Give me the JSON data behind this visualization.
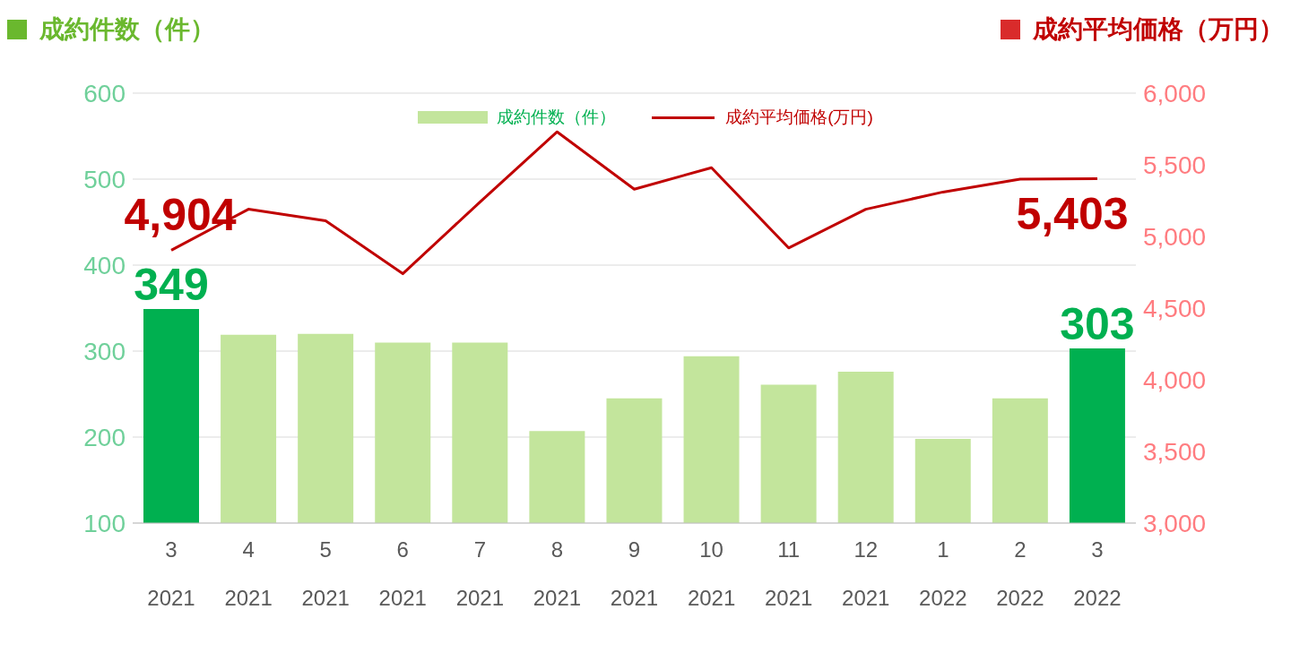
{
  "chart_data": {
    "type": "bar",
    "ylabel": "成約件数（件）",
    "y2label": "成約平均価格（万円）",
    "categories": [
      "3\n2021",
      "4\n2021",
      "5\n2021",
      "6\n2021",
      "7\n2021",
      "8\n2021",
      "9\n2021",
      "10\n2021",
      "11\n2021",
      "12\n2021",
      "1\n2022",
      "2\n2022",
      "3\n2022"
    ],
    "series": [
      {
        "name": "成約件数（件）",
        "color": "#c3e59c",
        "colors": [
          "#00b050",
          "#c3e59c",
          "#c3e59c",
          "#c3e59c",
          "#c3e59c",
          "#c3e59c",
          "#c3e59c",
          "#c3e59c",
          "#c3e59c",
          "#c3e59c",
          "#c3e59c",
          "#c3e59c",
          "#00b050"
        ],
        "values": [
          349,
          319,
          320,
          310,
          310,
          207,
          245,
          294,
          261,
          276,
          198,
          245,
          303
        ],
        "value_labels": [
          "349",
          null,
          null,
          null,
          null,
          null,
          null,
          null,
          null,
          null,
          null,
          null,
          "303"
        ]
      },
      {
        "name": "成約平均価格(万円)",
        "type": "line",
        "axis": "y2",
        "color": "#c00000",
        "values": [
          4904,
          5190,
          5110,
          4740,
          5240,
          5730,
          5330,
          5480,
          4920,
          5190,
          5310,
          5400,
          5403
        ],
        "value_labels": [
          "4,904",
          null,
          null,
          null,
          null,
          null,
          null,
          null,
          null,
          null,
          null,
          null,
          "5,403"
        ]
      }
    ],
    "ylim": [
      100,
      600
    ],
    "yticks": [
      100,
      200,
      300,
      400,
      500,
      600
    ],
    "y2lim": [
      3000,
      6000
    ],
    "y2ticks": [
      {
        "value": 3000,
        "label": "3,000"
      },
      {
        "value": 3500,
        "label": "3,500"
      },
      {
        "value": 4000,
        "label": "4,000"
      },
      {
        "value": 4500,
        "label": "4,500"
      },
      {
        "value": 5000,
        "label": "5,000"
      },
      {
        "value": 5500,
        "label": "5,500"
      },
      {
        "value": 6000,
        "label": "6,000"
      }
    ],
    "grid": "y",
    "legend": "top",
    "marker": "none",
    "line_style": "solid"
  }
}
